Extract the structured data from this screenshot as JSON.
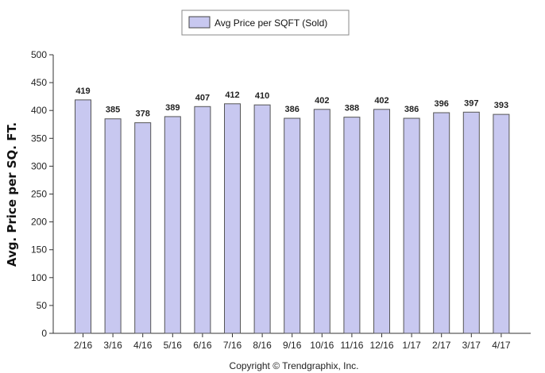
{
  "legend": {
    "label": "Avg Price per SQFT (Sold)",
    "swatch_color": "#c8c8f0"
  },
  "footer": {
    "copyright": "Copyright © Trendgraphix, Inc."
  },
  "chart_data": {
    "type": "bar",
    "categories": [
      "2/16",
      "3/16",
      "4/16",
      "5/16",
      "6/16",
      "7/16",
      "8/16",
      "9/16",
      "10/16",
      "11/16",
      "12/16",
      "1/17",
      "2/17",
      "3/17",
      "4/17"
    ],
    "series": [
      {
        "name": "Avg Price per SQFT (Sold)",
        "values": [
          419,
          385,
          378,
          389,
          407,
          412,
          410,
          386,
          402,
          388,
          402,
          386,
          396,
          397,
          393
        ],
        "color": "#c8c8f0",
        "stroke": "#555555"
      }
    ],
    "ylabel": "Avg. Price per SQ. FT.",
    "xlabel": "",
    "ylim": [
      0,
      500
    ],
    "yticks": [
      0,
      50,
      100,
      150,
      200,
      250,
      300,
      350,
      400,
      450,
      500
    ],
    "grid": false,
    "legend_position": "top-center",
    "data_labels": true
  }
}
